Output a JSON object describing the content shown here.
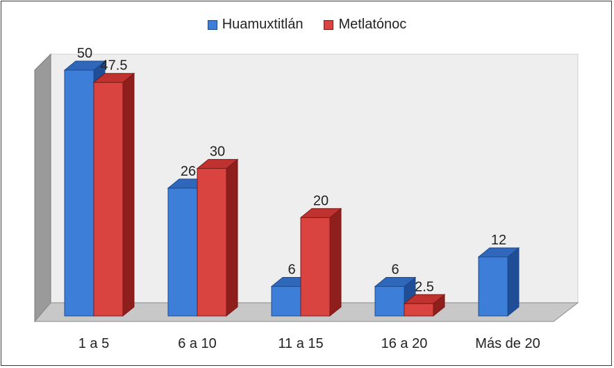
{
  "chart_data": {
    "type": "bar",
    "categories": [
      "1 a 5",
      "6 a 10",
      "11 a 15",
      "16 a 20",
      "Más de 20"
    ],
    "series": [
      {
        "name": "Huamuxtitlán",
        "values": [
          50,
          26,
          6,
          6,
          12
        ],
        "labels": [
          "50",
          "26",
          "6",
          "6",
          "12"
        ]
      },
      {
        "name": "Metlatónoc",
        "values": [
          47.5,
          30,
          20,
          2.5,
          null
        ],
        "labels": [
          "47.5",
          "30",
          "20",
          "2.5",
          ""
        ]
      }
    ],
    "title": "",
    "xlabel": "",
    "ylabel": "",
    "ylim": [
      0,
      50
    ],
    "grid": false,
    "legend_position": "top",
    "style": "3d-clustered-column",
    "colors": {
      "Huamuxtitlán": {
        "front": "#3d7fd8",
        "top": "#2f68bb",
        "side": "#1f4e96",
        "edge": "#1d4a8f"
      },
      "Metlatónoc": {
        "front": "#d94440",
        "top": "#c0322f",
        "side": "#8e1f1d",
        "edge": "#7a1a18"
      },
      "wall": "#eeeeee",
      "side_wall": "#9a9a9a",
      "floor": "#c8c8c8"
    }
  }
}
